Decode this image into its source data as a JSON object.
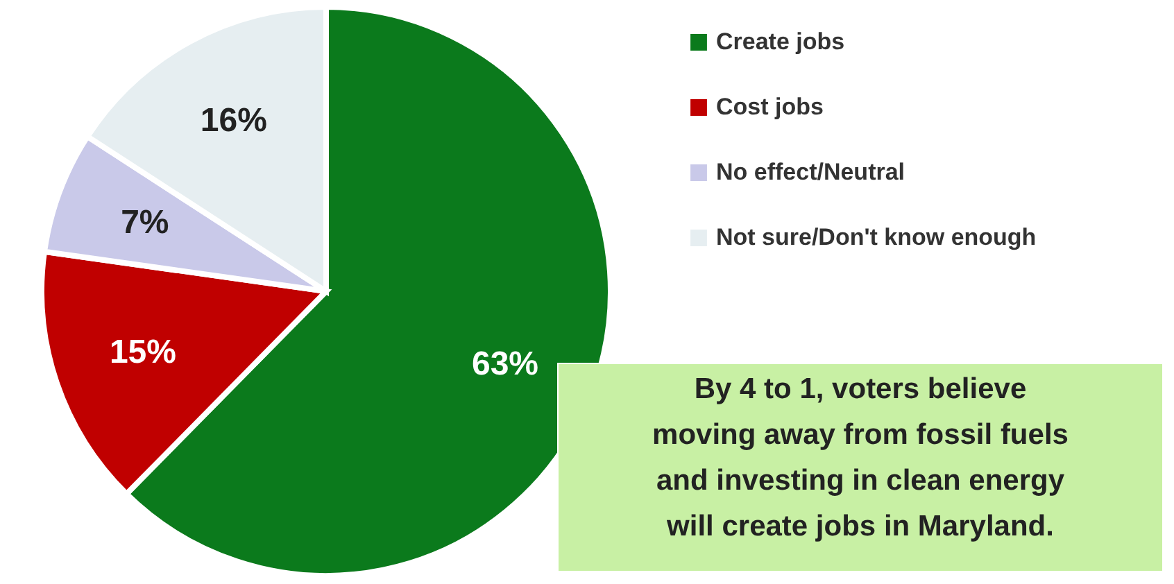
{
  "chart_data": {
    "type": "pie",
    "categories": [
      "Create jobs",
      "Cost jobs",
      "No effect/Neutral",
      "Not sure/Don't know enough"
    ],
    "values": [
      63,
      15,
      7,
      16
    ],
    "colors": [
      "#0b7a1c",
      "#c00000",
      "#c9c9e9",
      "#e6eef1"
    ],
    "data_labels": true,
    "value_labels": [
      "63%",
      "15%",
      "7%",
      "16%"
    ],
    "legend": "right",
    "annotations": [
      "By 4 to 1, voters believe\nmoving away from fossil fuels\nand investing in clean energy\nwill create jobs in Maryland."
    ]
  }
}
